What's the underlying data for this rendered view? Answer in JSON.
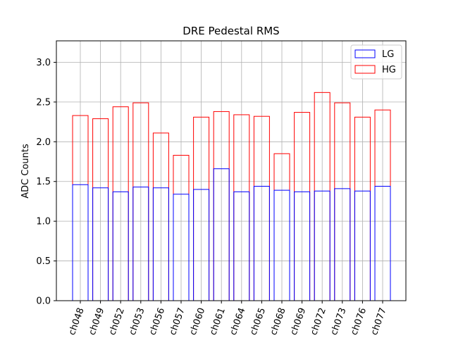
{
  "chart_data": {
    "type": "bar",
    "title": "DRE Pedestal RMS",
    "xlabel": "",
    "ylabel": "ADC Counts",
    "ylim": [
      0,
      3.27
    ],
    "yticks": [
      0.0,
      0.5,
      1.0,
      1.5,
      2.0,
      2.5,
      3.0
    ],
    "ytick_labels": [
      "0.0",
      "0.5",
      "1.0",
      "1.5",
      "2.0",
      "2.5",
      "3.0"
    ],
    "grid": true,
    "legend_position": "top-right",
    "categories": [
      "ch048",
      "ch049",
      "ch052",
      "ch053",
      "ch056",
      "ch057",
      "ch060",
      "ch061",
      "ch064",
      "ch065",
      "ch068",
      "ch069",
      "ch072",
      "ch073",
      "ch076",
      "ch077"
    ],
    "series": [
      {
        "name": "LG",
        "color": "#0000ff",
        "values": [
          1.46,
          1.42,
          1.37,
          1.43,
          1.42,
          1.34,
          1.4,
          1.66,
          1.37,
          1.44,
          1.39,
          1.37,
          1.38,
          1.41,
          1.38,
          1.44
        ]
      },
      {
        "name": "HG",
        "color": "#ff0000",
        "values": [
          2.33,
          2.29,
          2.44,
          2.49,
          2.11,
          1.83,
          2.31,
          2.38,
          2.34,
          2.32,
          1.85,
          2.37,
          2.62,
          2.49,
          2.31,
          2.4
        ]
      }
    ]
  }
}
